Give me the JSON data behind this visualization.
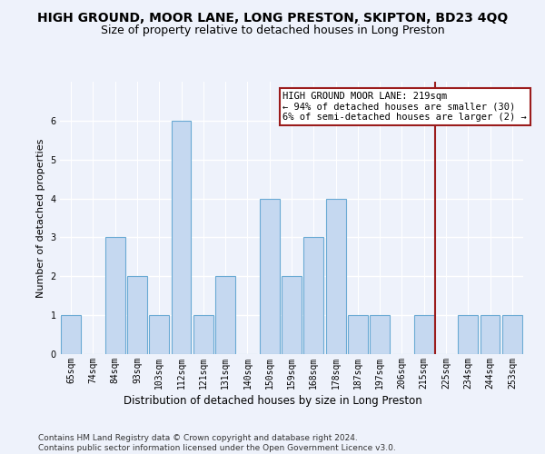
{
  "title": "HIGH GROUND, MOOR LANE, LONG PRESTON, SKIPTON, BD23 4QQ",
  "subtitle": "Size of property relative to detached houses in Long Preston",
  "xlabel": "Distribution of detached houses by size in Long Preston",
  "ylabel": "Number of detached properties",
  "categories": [
    "65sqm",
    "74sqm",
    "84sqm",
    "93sqm",
    "103sqm",
    "112sqm",
    "121sqm",
    "131sqm",
    "140sqm",
    "150sqm",
    "159sqm",
    "168sqm",
    "178sqm",
    "187sqm",
    "197sqm",
    "206sqm",
    "215sqm",
    "225sqm",
    "234sqm",
    "244sqm",
    "253sqm"
  ],
  "values": [
    1,
    0,
    3,
    2,
    1,
    6,
    1,
    2,
    0,
    4,
    2,
    3,
    4,
    1,
    1,
    0,
    1,
    0,
    1,
    1,
    1
  ],
  "bar_color": "#c5d8f0",
  "bar_edge_color": "#6aaad4",
  "property_line_index": 16.5,
  "property_line_color": "#9b1c1c",
  "annotation_text": "HIGH GROUND MOOR LANE: 219sqm\n← 94% of detached houses are smaller (30)\n6% of semi-detached houses are larger (2) →",
  "annotation_box_edge_color": "#9b1c1c",
  "ylim": [
    0,
    7
  ],
  "yticks": [
    0,
    1,
    2,
    3,
    4,
    5,
    6
  ],
  "background_color": "#eef2fb",
  "grid_color": "#ffffff",
  "footnote": "Contains HM Land Registry data © Crown copyright and database right 2024.\nContains public sector information licensed under the Open Government Licence v3.0.",
  "title_fontsize": 10,
  "subtitle_fontsize": 9,
  "xlabel_fontsize": 8.5,
  "ylabel_fontsize": 8,
  "tick_fontsize": 7,
  "annotation_fontsize": 7.5,
  "footnote_fontsize": 6.5
}
